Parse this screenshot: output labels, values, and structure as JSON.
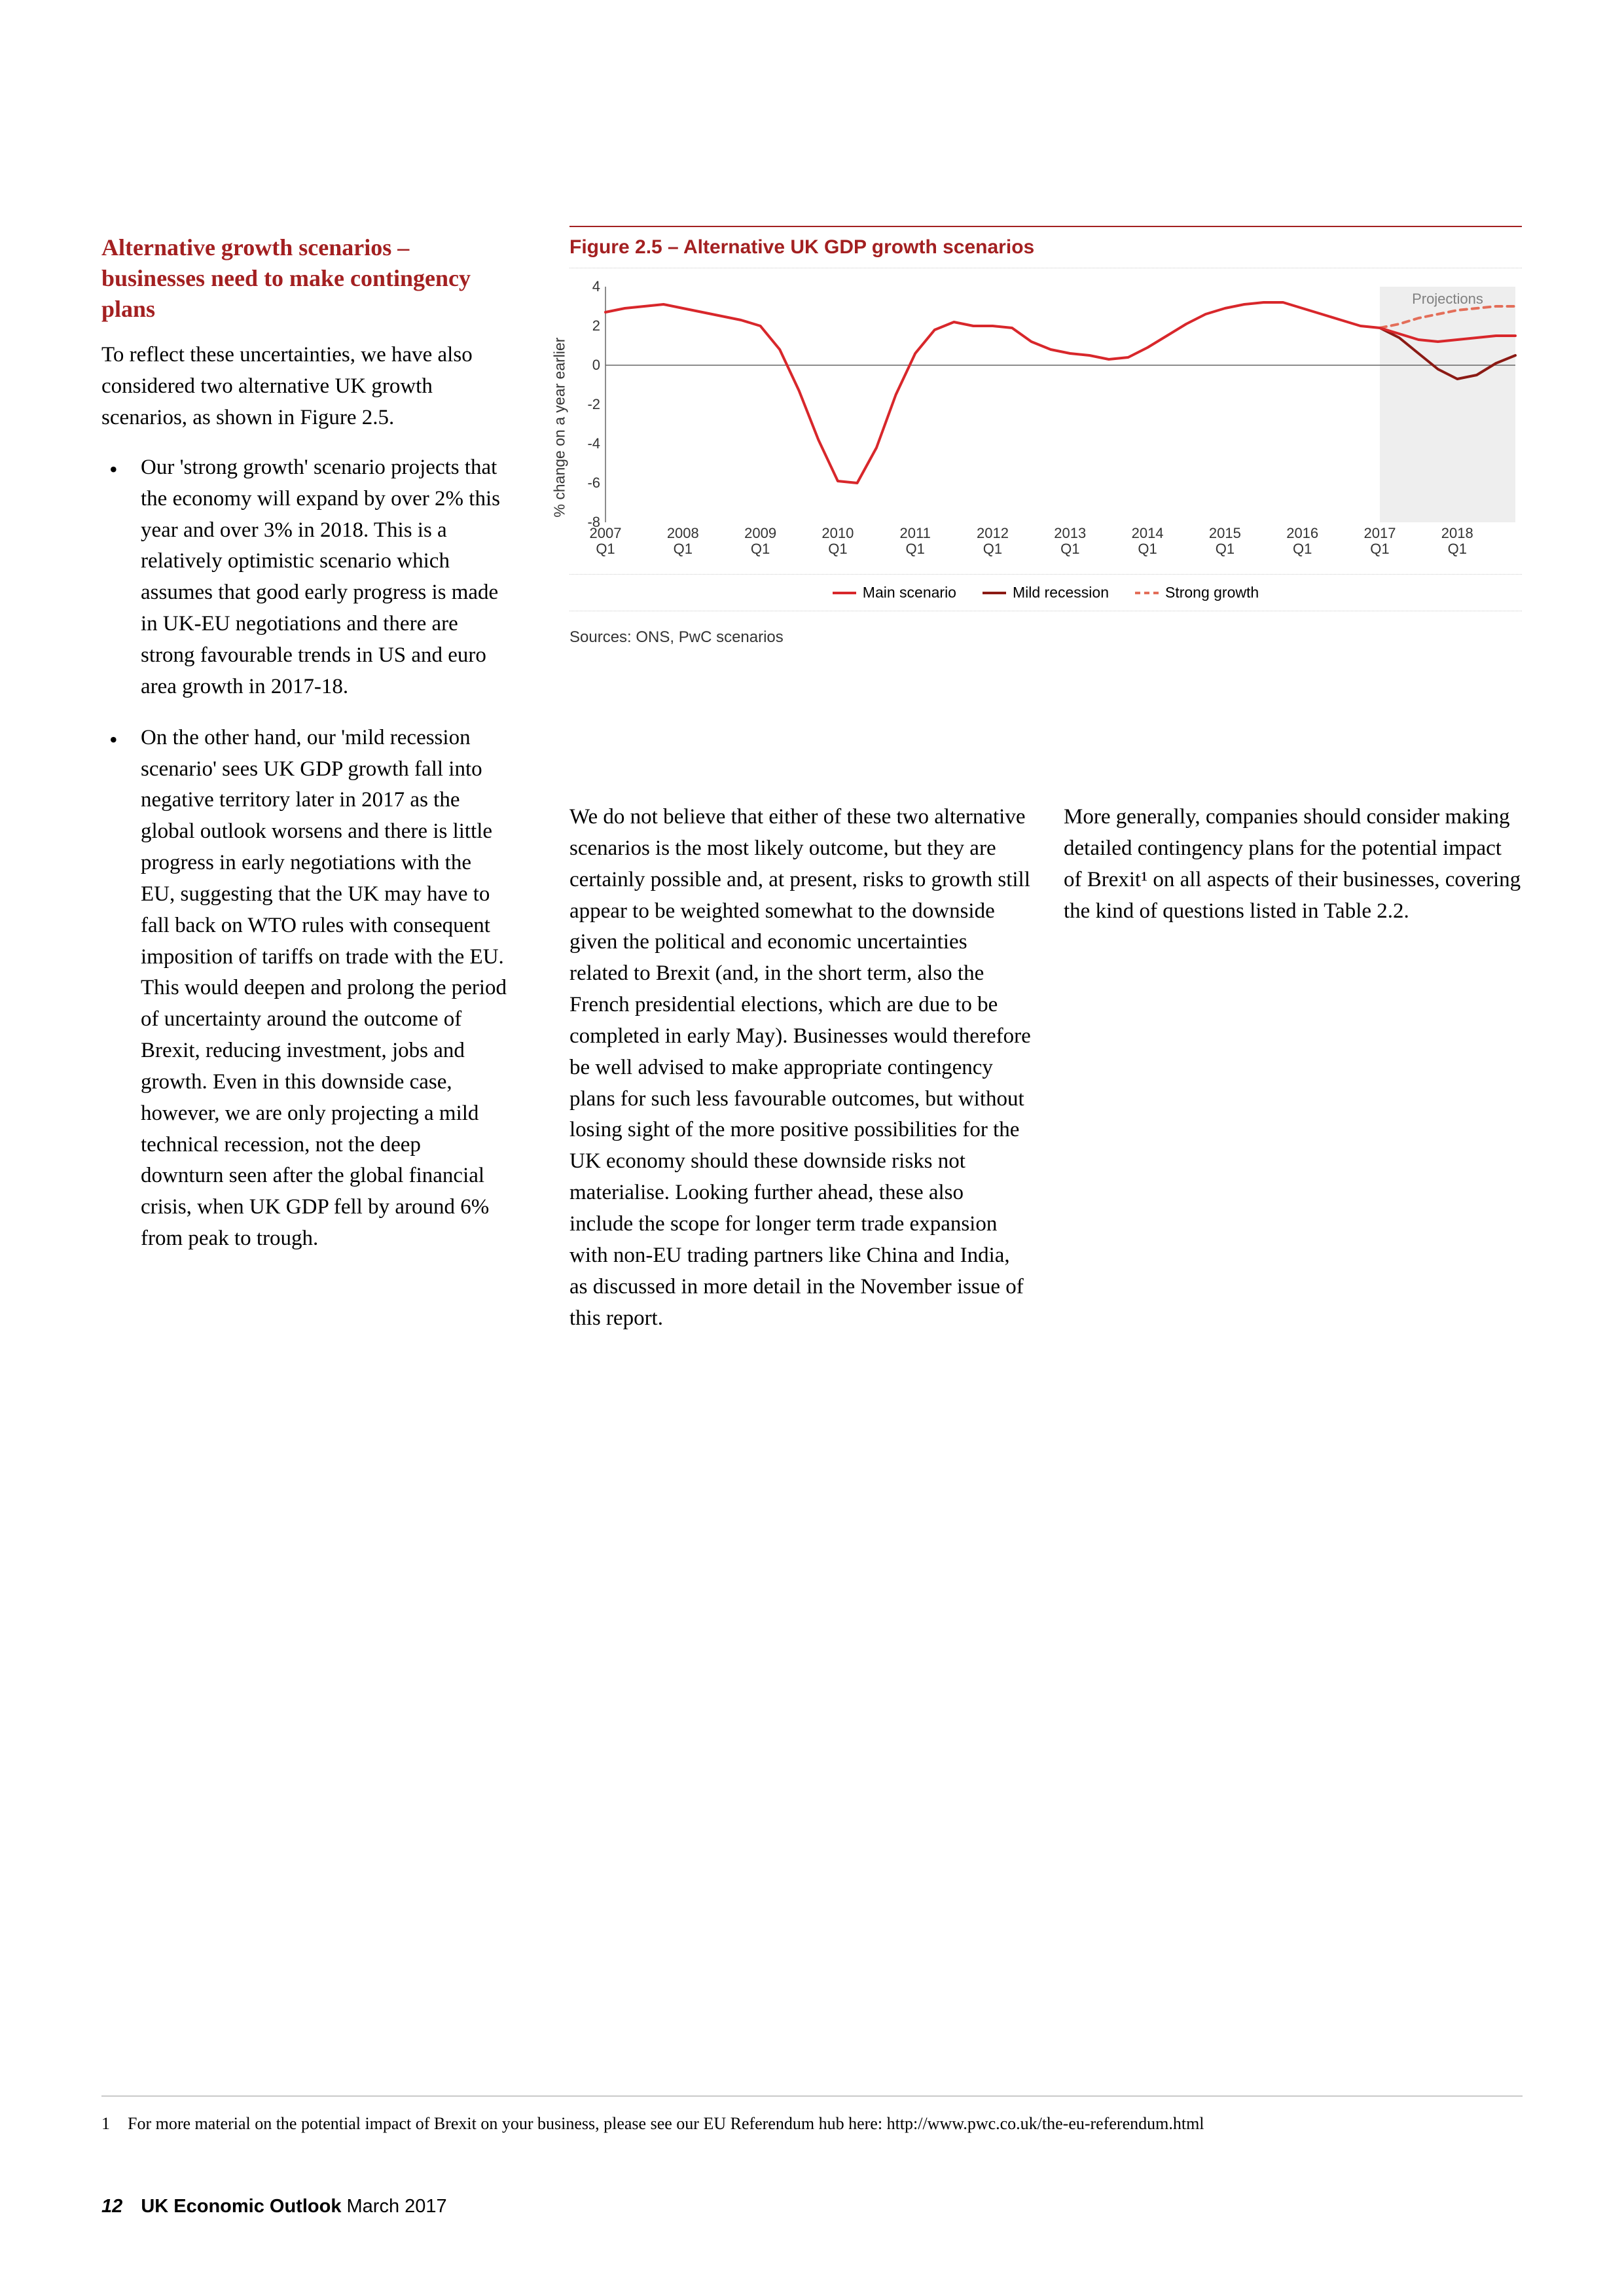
{
  "heading": "Alternative growth scenarios – businesses need to make contingency plans",
  "intro": "To reflect these uncertainties, we have also considered two alternative UK growth scenarios, as shown in Figure 2.5.",
  "bullet1": "Our 'strong growth' scenario projects that the economy will expand by over 2% this year and over 3% in 2018. This is a relatively optimistic scenario which assumes that good early progress is made in UK-EU negotiations and there are strong favourable trends in US and euro area growth in 2017-18.",
  "bullet2": "On the other hand, our 'mild recession scenario' sees UK GDP growth fall into negative territory later in 2017 as the global outlook worsens and there is little progress in early negotiations with the EU, suggesting that the UK may have to fall back on WTO rules with consequent imposition of tariffs on trade with the EU. This would deepen and prolong the period of uncertainty around the outcome of Brexit, reducing investment, jobs and growth. Even in this downside case, however, we are only projecting a mild technical recession, not the deep downturn seen after the global financial crisis, when UK GDP fell by around 6% from peak to trough.",
  "midcol": "We do not believe that either of these two alternative scenarios is the most likely outcome, but they are certainly possible and, at present, risks to growth still appear to be weighted somewhat to the downside given the political and economic uncertainties related to Brexit (and, in the short term, also the French presidential elections, which are due to be completed in early May). Businesses would therefore be well advised to make appropriate contingency plans for such less favourable outcomes, but without losing sight of the more positive possibilities for the UK economy should these downside risks not materialise. Looking further ahead, these also include the scope for longer term trade expansion with non-EU trading partners like China and India, as discussed in more detail in the November issue of this report.",
  "rightcol": "More generally, companies should consider making detailed contingency plans for the potential impact of Brexit¹ on all aspects of their businesses, covering the kind of questions listed in Table 2.2.",
  "footnote": {
    "num": "1",
    "text": "For more material on the potential impact of Brexit on your business, please see our EU Referendum hub here: http://www.pwc.co.uk/the-eu-referendum.html"
  },
  "footer": {
    "page": "12",
    "title": "UK Economic Outlook",
    "date": " March 2017"
  },
  "chart": {
    "title": "Figure 2.5 – Alternative UK GDP growth scenarios",
    "yAxisLabel": "% change on a year earlier",
    "sources": "Sources: ONS, PwC scenarios",
    "projectionsLabel": "Projections",
    "ylim": [
      -8,
      4
    ],
    "ytick_step": 2,
    "yTicks": [
      4,
      2,
      0,
      -2,
      -4,
      -6,
      -8
    ],
    "xLabels": [
      "2007 Q1",
      "2008 Q1",
      "2009 Q1",
      "2010 Q1",
      "2011 Q1",
      "2012 Q1",
      "2013 Q1",
      "2014 Q1",
      "2015 Q1",
      "2016 Q1",
      "2017 Q1",
      "2018 Q1"
    ],
    "projectionStart": 40,
    "colors": {
      "main": "#d8272b",
      "mild": "#8b1a14",
      "strong": "#e36e59",
      "projectionsFill": "#eeeeee",
      "axis": "#666666",
      "tickText": "#333333",
      "gridBaseline": "#666666"
    },
    "fontSizes": {
      "tick": 22,
      "legend": 23,
      "title": 30
    },
    "legend": [
      {
        "label": "Main scenario",
        "color": "#d8272b",
        "dash": "solid"
      },
      {
        "label": "Mild recession",
        "color": "#8b1a14",
        "dash": "solid"
      },
      {
        "label": "Strong growth",
        "color": "#e36e59",
        "dash": "dashed"
      }
    ],
    "series": {
      "main": [
        2.7,
        2.9,
        3.0,
        3.1,
        2.9,
        2.7,
        2.5,
        2.3,
        2.0,
        0.8,
        -1.3,
        -3.8,
        -5.9,
        -6.0,
        -4.2,
        -1.5,
        0.6,
        1.8,
        2.2,
        2.0,
        2.0,
        1.9,
        1.2,
        0.8,
        0.6,
        0.5,
        0.3,
        0.4,
        0.9,
        1.5,
        2.1,
        2.6,
        2.9,
        3.1,
        3.2,
        3.2,
        2.9,
        2.6,
        2.3,
        2.0,
        1.9,
        1.6,
        1.3,
        1.2,
        1.3,
        1.4,
        1.5,
        1.5
      ],
      "mild": [
        null,
        null,
        null,
        null,
        null,
        null,
        null,
        null,
        null,
        null,
        null,
        null,
        null,
        null,
        null,
        null,
        null,
        null,
        null,
        null,
        null,
        null,
        null,
        null,
        null,
        null,
        null,
        null,
        null,
        null,
        null,
        null,
        null,
        null,
        null,
        null,
        null,
        null,
        null,
        null,
        1.9,
        1.4,
        0.6,
        -0.2,
        -0.7,
        -0.5,
        0.1,
        0.5
      ],
      "strong": [
        null,
        null,
        null,
        null,
        null,
        null,
        null,
        null,
        null,
        null,
        null,
        null,
        null,
        null,
        null,
        null,
        null,
        null,
        null,
        null,
        null,
        null,
        null,
        null,
        null,
        null,
        null,
        null,
        null,
        null,
        null,
        null,
        null,
        null,
        null,
        null,
        null,
        null,
        null,
        null,
        1.9,
        2.1,
        2.4,
        2.6,
        2.8,
        2.9,
        3.0,
        3.0
      ]
    }
  }
}
